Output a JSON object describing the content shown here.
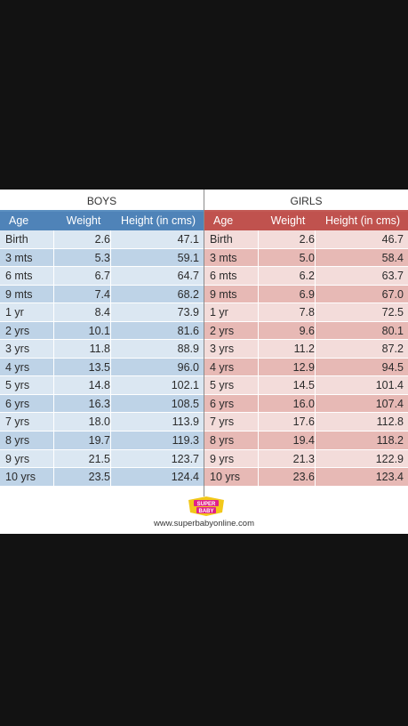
{
  "boys": {
    "title": "BOYS",
    "headers": {
      "age": "Age",
      "weight": "Weight",
      "height": "Height (in cms)"
    },
    "rows": [
      {
        "age": "Birth",
        "weight": "2.6",
        "height": "47.1"
      },
      {
        "age": "3 mts",
        "weight": "5.3",
        "height": "59.1"
      },
      {
        "age": "6 mts",
        "weight": "6.7",
        "height": "64.7"
      },
      {
        "age": "9 mts",
        "weight": "7.4",
        "height": "68.2"
      },
      {
        "age": "1 yr",
        "weight": "8.4",
        "height": "73.9"
      },
      {
        "age": "2 yrs",
        "weight": "10.1",
        "height": "81.6"
      },
      {
        "age": "3 yrs",
        "weight": "11.8",
        "height": "88.9"
      },
      {
        "age": "4 yrs",
        "weight": "13.5",
        "height": "96.0"
      },
      {
        "age": "5 yrs",
        "weight": "14.8",
        "height": "102.1"
      },
      {
        "age": "6 yrs",
        "weight": "16.3",
        "height": "108.5"
      },
      {
        "age": "7 yrs",
        "weight": "18.0",
        "height": "113.9"
      },
      {
        "age": "8 yrs",
        "weight": "19.7",
        "height": "119.3"
      },
      {
        "age": "9 yrs",
        "weight": "21.5",
        "height": "123.7"
      },
      {
        "age": "10 yrs",
        "weight": "23.5",
        "height": "124.4"
      }
    ]
  },
  "girls": {
    "title": "GIRLS",
    "headers": {
      "age": "Age",
      "weight": "Weight",
      "height": "Height (in cms)"
    },
    "rows": [
      {
        "age": "Birth",
        "weight": "2.6",
        "height": "46.7"
      },
      {
        "age": "3 mts",
        "weight": "5.0",
        "height": "58.4"
      },
      {
        "age": "6 mts",
        "weight": "6.2",
        "height": "63.7"
      },
      {
        "age": "9 mts",
        "weight": "6.9",
        "height": "67.0"
      },
      {
        "age": "1 yr",
        "weight": "7.8",
        "height": "72.5"
      },
      {
        "age": "2 yrs",
        "weight": "9.6",
        "height": "80.1"
      },
      {
        "age": "3 yrs",
        "weight": "11.2",
        "height": "87.2"
      },
      {
        "age": "4 yrs",
        "weight": "12.9",
        "height": "94.5"
      },
      {
        "age": "5 yrs",
        "weight": "14.5",
        "height": "101.4"
      },
      {
        "age": "6 yrs",
        "weight": "16.0",
        "height": "107.4"
      },
      {
        "age": "7 yrs",
        "weight": "17.6",
        "height": "112.8"
      },
      {
        "age": "8 yrs",
        "weight": "19.4",
        "height": "118.2"
      },
      {
        "age": "9 yrs",
        "weight": "21.3",
        "height": "122.9"
      },
      {
        "age": "10 yrs",
        "weight": "23.6",
        "height": "123.4"
      }
    ]
  },
  "logo": {
    "text_top": "SUPER",
    "text_bottom": "BABY",
    "icon": "superbaby-logo-icon"
  },
  "footer": {
    "website": "www.superbabyonline.com"
  },
  "colors": {
    "boys_header": "#4f83b8",
    "girls_header": "#c0524e",
    "boys_row_light": "#dbe7f2",
    "boys_row_dark": "#bed3e7",
    "girls_row_light": "#f3dcda",
    "girls_row_dark": "#e7b9b5",
    "background": "#121212"
  }
}
